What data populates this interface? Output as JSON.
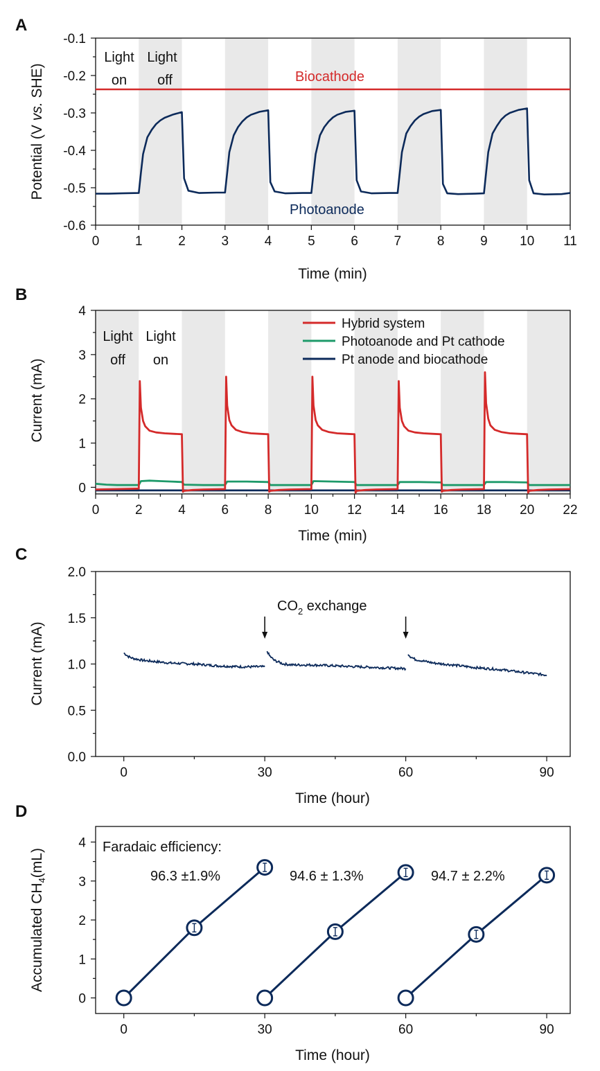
{
  "colors": {
    "red": "#d42a2a",
    "navy": "#0c2a5a",
    "green": "#1e9a6a",
    "shade": "#e9e9e9",
    "axis": "#111111"
  },
  "chart_data": [
    {
      "panel": "A",
      "type": "line",
      "xlabel": "Time (min)",
      "ylabel_parts": [
        "Potential (V ",
        "vs.",
        " SHE)"
      ],
      "xlim": [
        0,
        11
      ],
      "ylim": [
        -0.6,
        -0.1
      ],
      "xticks": [
        0,
        1,
        2,
        3,
        4,
        5,
        6,
        7,
        8,
        9,
        10,
        11
      ],
      "yticks": [
        -0.1,
        -0.2,
        -0.3,
        -0.4,
        -0.5,
        -0.6
      ],
      "ytick_labels": [
        "-0.1",
        "-0.2",
        "-0.3",
        "-0.4",
        "-0.5",
        "-0.6"
      ],
      "shaded_intervals": [
        [
          1,
          2
        ],
        [
          3,
          4
        ],
        [
          5,
          6
        ],
        [
          7,
          8
        ],
        [
          9,
          10
        ]
      ],
      "light_labels": {
        "on": [
          "Light",
          "on"
        ],
        "off": [
          "Light",
          "off"
        ]
      },
      "series": [
        {
          "name": "Biocathode",
          "color": "#d42a2a",
          "x": [
            0,
            11
          ],
          "y": [
            -0.237,
            -0.237
          ]
        },
        {
          "name": "Photoanode",
          "color": "#0c2a5a",
          "x": [
            0,
            0.3,
            0.6,
            1.0,
            1.05,
            1.1,
            1.2,
            1.3,
            1.4,
            1.5,
            1.6,
            1.8,
            2.0,
            2.05,
            2.15,
            2.4,
            2.8,
            3.0,
            3.05,
            3.1,
            3.2,
            3.3,
            3.4,
            3.5,
            3.6,
            3.8,
            4.0,
            4.05,
            4.15,
            4.4,
            4.8,
            5.0,
            5.05,
            5.1,
            5.2,
            5.3,
            5.4,
            5.5,
            5.6,
            5.8,
            6.0,
            6.05,
            6.15,
            6.4,
            6.8,
            7.0,
            7.05,
            7.1,
            7.2,
            7.3,
            7.4,
            7.5,
            7.6,
            7.8,
            8.0,
            8.05,
            8.15,
            8.4,
            8.8,
            9.0,
            9.05,
            9.1,
            9.2,
            9.3,
            9.4,
            9.5,
            9.6,
            9.8,
            10.0,
            10.05,
            10.15,
            10.4,
            10.8,
            11.0
          ],
          "y": [
            -0.516,
            -0.516,
            -0.515,
            -0.514,
            -0.46,
            -0.41,
            -0.365,
            -0.345,
            -0.33,
            -0.32,
            -0.313,
            -0.304,
            -0.298,
            -0.475,
            -0.508,
            -0.514,
            -0.513,
            -0.513,
            -0.46,
            -0.405,
            -0.36,
            -0.338,
            -0.323,
            -0.312,
            -0.305,
            -0.297,
            -0.293,
            -0.485,
            -0.51,
            -0.515,
            -0.514,
            -0.514,
            -0.46,
            -0.41,
            -0.36,
            -0.338,
            -0.323,
            -0.312,
            -0.305,
            -0.297,
            -0.294,
            -0.48,
            -0.51,
            -0.515,
            -0.514,
            -0.514,
            -0.46,
            -0.405,
            -0.355,
            -0.335,
            -0.32,
            -0.31,
            -0.303,
            -0.295,
            -0.292,
            -0.49,
            -0.515,
            -0.517,
            -0.516,
            -0.515,
            -0.46,
            -0.405,
            -0.355,
            -0.335,
            -0.318,
            -0.307,
            -0.3,
            -0.292,
            -0.288,
            -0.48,
            -0.515,
            -0.518,
            -0.517,
            -0.514
          ]
        }
      ],
      "annotations": [
        "Biocathode",
        "Photoanode"
      ]
    },
    {
      "panel": "B",
      "type": "line",
      "xlabel": "Time (min)",
      "ylabel": "Current (mA)",
      "xlim": [
        0,
        22
      ],
      "ylim": [
        -0.15,
        4
      ],
      "xticks": [
        0,
        2,
        4,
        6,
        8,
        10,
        12,
        14,
        16,
        18,
        20,
        22
      ],
      "yticks": [
        0,
        1,
        2,
        3,
        4
      ],
      "shaded_intervals": [
        [
          0,
          2
        ],
        [
          4,
          6
        ],
        [
          8,
          10
        ],
        [
          12,
          14
        ],
        [
          16,
          18
        ],
        [
          20,
          22
        ]
      ],
      "light_labels": {
        "off": [
          "Light",
          "off"
        ],
        "on": [
          "Light",
          "on"
        ]
      },
      "series": [
        {
          "name": "Hybrid system",
          "color": "#d42a2a",
          "x": [
            0,
            1.0,
            2.0,
            2.05,
            2.1,
            2.2,
            2.3,
            2.5,
            2.8,
            3.2,
            3.6,
            4.0,
            4.05,
            4.1,
            4.5,
            5.0,
            6.0,
            6.05,
            6.1,
            6.2,
            6.3,
            6.5,
            6.8,
            7.2,
            7.6,
            8.0,
            8.05,
            8.1,
            8.5,
            9.0,
            10.0,
            10.05,
            10.1,
            10.2,
            10.3,
            10.5,
            10.8,
            11.2,
            11.6,
            12.0,
            12.05,
            12.1,
            12.5,
            13.0,
            14.0,
            14.05,
            14.1,
            14.2,
            14.3,
            14.5,
            14.8,
            15.2,
            15.6,
            16.0,
            16.05,
            16.1,
            16.5,
            17.0,
            18.0,
            18.05,
            18.1,
            18.2,
            18.3,
            18.5,
            18.8,
            19.2,
            19.6,
            20.0,
            20.05,
            20.1,
            20.5,
            21.0,
            22.0
          ],
          "y": [
            -0.05,
            -0.04,
            -0.03,
            2.4,
            1.8,
            1.5,
            1.38,
            1.28,
            1.24,
            1.22,
            1.21,
            1.2,
            -0.1,
            -0.08,
            -0.06,
            -0.05,
            -0.04,
            2.5,
            1.85,
            1.52,
            1.4,
            1.3,
            1.25,
            1.22,
            1.21,
            1.2,
            -0.1,
            -0.08,
            -0.06,
            -0.05,
            -0.04,
            2.5,
            1.85,
            1.52,
            1.4,
            1.3,
            1.25,
            1.22,
            1.21,
            1.2,
            -0.12,
            -0.08,
            -0.06,
            -0.05,
            -0.04,
            2.4,
            1.8,
            1.5,
            1.38,
            1.28,
            1.24,
            1.22,
            1.21,
            1.2,
            -0.1,
            -0.08,
            -0.06,
            -0.05,
            -0.04,
            2.6,
            1.9,
            1.55,
            1.4,
            1.3,
            1.25,
            1.22,
            1.21,
            1.2,
            -0.12,
            -0.08,
            -0.06,
            -0.05,
            -0.04
          ]
        },
        {
          "name": "Photoanode and Pt cathode",
          "color": "#1e9a6a",
          "x": [
            0,
            0.5,
            1.0,
            1.5,
            2.0,
            2.1,
            2.5,
            3.0,
            3.5,
            4.0,
            4.1,
            5.0,
            6.0,
            6.1,
            7.0,
            8.0,
            8.1,
            9.0,
            10.0,
            10.1,
            11.0,
            12.0,
            12.1,
            13.0,
            14.0,
            14.1,
            15.0,
            16.0,
            16.1,
            17.0,
            18.0,
            18.1,
            19.0,
            20.0,
            20.1,
            21.0,
            22.0
          ],
          "y": [
            0.08,
            0.06,
            0.05,
            0.05,
            0.05,
            0.14,
            0.15,
            0.14,
            0.13,
            0.12,
            0.06,
            0.05,
            0.05,
            0.13,
            0.13,
            0.12,
            0.05,
            0.05,
            0.05,
            0.14,
            0.13,
            0.12,
            0.05,
            0.05,
            0.05,
            0.12,
            0.12,
            0.11,
            0.05,
            0.05,
            0.05,
            0.12,
            0.12,
            0.11,
            0.05,
            0.05,
            0.05
          ]
        },
        {
          "name": "Pt anode and biocathode",
          "color": "#0c2a5a",
          "x": [
            0,
            5,
            10,
            15,
            22
          ],
          "y": [
            -0.07,
            -0.07,
            -0.07,
            -0.07,
            -0.07
          ]
        }
      ]
    },
    {
      "panel": "C",
      "type": "line",
      "xlabel": "Time (hour)",
      "ylabel": "Current (mA)",
      "xlim": [
        -6,
        95
      ],
      "ylim": [
        0.0,
        2.0
      ],
      "xticks": [
        0,
        30,
        60,
        90
      ],
      "yticks": [
        0.0,
        0.5,
        1.0,
        1.5,
        2.0
      ],
      "ytick_labels": [
        "0.0",
        "0.5",
        "1.0",
        "1.5",
        "2.0"
      ],
      "annotation": {
        "prefix": "CO",
        "subscript": "2",
        "suffix": " exchange"
      },
      "arrows_at": [
        30,
        60
      ],
      "series": [
        {
          "name": "segment-1",
          "color": "#0c2a5a",
          "x": [
            0,
            1,
            2,
            4,
            6,
            10,
            15,
            20,
            25,
            30
          ],
          "y": [
            1.12,
            1.08,
            1.06,
            1.04,
            1.03,
            1.01,
            1.0,
            0.98,
            0.97,
            0.97
          ]
        },
        {
          "name": "segment-2",
          "color": "#0c2a5a",
          "x": [
            30.5,
            31,
            32,
            34,
            36,
            40,
            45,
            50,
            55,
            60
          ],
          "y": [
            1.14,
            1.09,
            1.04,
            1.0,
            0.99,
            0.99,
            0.98,
            0.97,
            0.96,
            0.95
          ]
        },
        {
          "name": "segment-3",
          "color": "#0c2a5a",
          "x": [
            60.5,
            61,
            62,
            64,
            66,
            70,
            75,
            80,
            85,
            90
          ],
          "y": [
            1.11,
            1.08,
            1.05,
            1.03,
            1.01,
            0.99,
            0.96,
            0.94,
            0.91,
            0.88
          ]
        }
      ]
    },
    {
      "panel": "D",
      "type": "scatter",
      "xlabel": "Time (hour)",
      "ylabel_parts": [
        "Accumulated CH",
        "4",
        "(mL)"
      ],
      "xlim": [
        -6,
        95
      ],
      "ylim": [
        -0.4,
        4.4
      ],
      "xticks": [
        0,
        30,
        60,
        90
      ],
      "yticks": [
        0,
        1,
        2,
        3,
        4
      ],
      "efficiency_title": "Faradaic efficiency:",
      "efficiencies": [
        "96.3 ±1.9%",
        "94.6 ± 1.3%",
        "94.7 ± 2.2%"
      ],
      "series": [
        {
          "name": "batch-1",
          "color": "#0c2a5a",
          "x": [
            0,
            15,
            30
          ],
          "y": [
            0,
            1.8,
            3.35
          ]
        },
        {
          "name": "batch-2",
          "color": "#0c2a5a",
          "x": [
            30,
            45,
            60
          ],
          "y": [
            0,
            1.7,
            3.22
          ]
        },
        {
          "name": "batch-3",
          "color": "#0c2a5a",
          "x": [
            60,
            75,
            90
          ],
          "y": [
            0,
            1.63,
            3.15
          ]
        }
      ]
    }
  ]
}
